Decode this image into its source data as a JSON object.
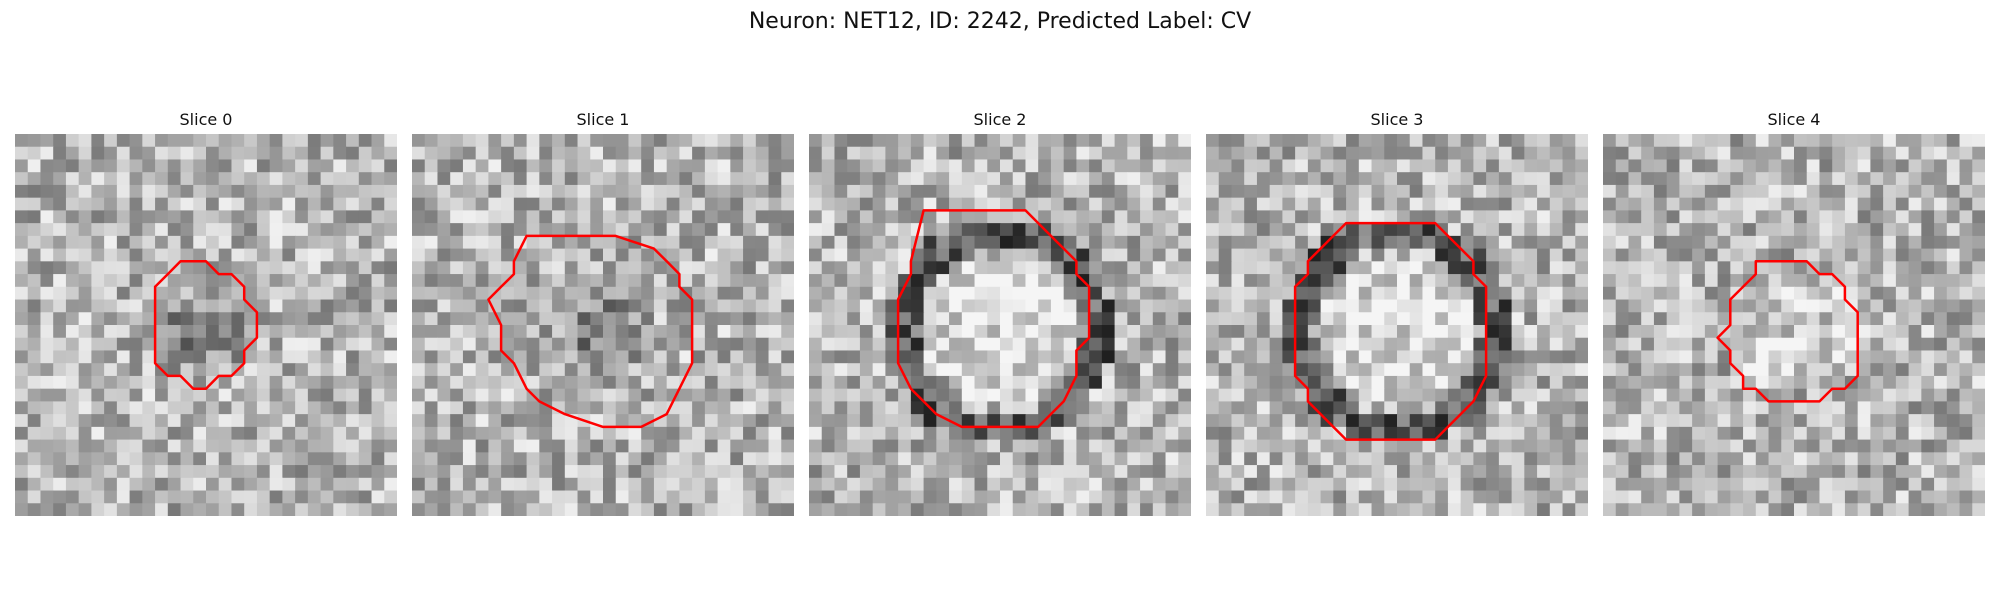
{
  "figure": {
    "title": "Neuron: NET12, ID: 2242, Predicted Label: CV"
  },
  "colors": {
    "contour": "#ff0000",
    "background": "#ffffff"
  },
  "grid_size": 30,
  "slices": [
    {
      "title": "Slice 0",
      "seed": 11,
      "dark_center": true,
      "ring": false,
      "contour": [
        [
          13,
          10
        ],
        [
          15,
          10
        ],
        [
          16,
          11
        ],
        [
          17,
          11
        ],
        [
          18,
          12
        ],
        [
          18,
          13
        ],
        [
          19,
          14
        ],
        [
          19,
          16
        ],
        [
          18,
          17
        ],
        [
          18,
          18
        ],
        [
          17,
          19
        ],
        [
          16,
          19
        ],
        [
          15,
          20
        ],
        [
          14,
          20
        ],
        [
          13,
          19
        ],
        [
          12,
          19
        ],
        [
          11,
          18
        ],
        [
          11,
          17
        ],
        [
          11,
          12
        ],
        [
          12,
          11
        ]
      ]
    },
    {
      "title": "Slice 1",
      "seed": 23,
      "dark_center": true,
      "ring": false,
      "contour": [
        [
          9,
          8
        ],
        [
          11,
          8
        ],
        [
          16,
          8
        ],
        [
          19,
          9
        ],
        [
          20,
          10
        ],
        [
          21,
          11
        ],
        [
          21,
          12
        ],
        [
          22,
          13
        ],
        [
          22,
          18
        ],
        [
          21,
          20
        ],
        [
          20,
          22
        ],
        [
          18,
          23
        ],
        [
          15,
          23
        ],
        [
          12,
          22
        ],
        [
          10,
          21
        ],
        [
          9,
          20
        ],
        [
          8,
          18
        ],
        [
          7,
          17
        ],
        [
          7,
          15
        ],
        [
          6,
          13
        ],
        [
          7,
          12
        ],
        [
          8,
          11
        ],
        [
          8,
          10
        ]
      ]
    },
    {
      "title": "Slice 2",
      "seed": 37,
      "dark_center": false,
      "ring": true,
      "contour": [
        [
          9,
          6
        ],
        [
          12,
          6
        ],
        [
          17,
          6
        ],
        [
          18,
          7
        ],
        [
          19,
          8
        ],
        [
          20,
          9
        ],
        [
          21,
          10
        ],
        [
          21,
          11
        ],
        [
          22,
          12
        ],
        [
          22,
          14
        ],
        [
          22,
          16
        ],
        [
          21,
          17
        ],
        [
          21,
          19
        ],
        [
          20,
          21
        ],
        [
          19,
          22
        ],
        [
          18,
          23
        ],
        [
          12,
          23
        ],
        [
          10,
          22
        ],
        [
          9,
          21
        ],
        [
          8,
          20
        ],
        [
          7,
          18
        ],
        [
          7,
          13
        ],
        [
          8,
          11
        ],
        [
          8,
          10
        ]
      ]
    },
    {
      "title": "Slice 3",
      "seed": 53,
      "dark_center": false,
      "ring": true,
      "contour": [
        [
          11,
          7
        ],
        [
          14,
          7
        ],
        [
          18,
          7
        ],
        [
          19,
          8
        ],
        [
          20,
          9
        ],
        [
          21,
          10
        ],
        [
          21,
          11
        ],
        [
          22,
          12
        ],
        [
          22,
          19
        ],
        [
          21,
          21
        ],
        [
          20,
          22
        ],
        [
          19,
          23
        ],
        [
          18,
          24
        ],
        [
          11,
          24
        ],
        [
          10,
          23
        ],
        [
          9,
          22
        ],
        [
          8,
          21
        ],
        [
          8,
          20
        ],
        [
          7,
          19
        ],
        [
          7,
          12
        ],
        [
          8,
          11
        ],
        [
          8,
          10
        ],
        [
          9,
          9
        ],
        [
          10,
          8
        ]
      ]
    },
    {
      "title": "Slice 4",
      "seed": 71,
      "dark_center": false,
      "ring": false,
      "contour": [
        [
          12,
          10
        ],
        [
          13,
          10
        ],
        [
          16,
          10
        ],
        [
          17,
          11
        ],
        [
          18,
          11
        ],
        [
          19,
          12
        ],
        [
          19,
          13
        ],
        [
          20,
          14
        ],
        [
          20,
          17
        ],
        [
          20,
          19
        ],
        [
          19,
          20
        ],
        [
          18,
          20
        ],
        [
          17,
          21
        ],
        [
          13,
          21
        ],
        [
          12,
          20
        ],
        [
          11,
          20
        ],
        [
          11,
          19
        ],
        [
          10,
          18
        ],
        [
          10,
          17
        ],
        [
          9,
          16
        ],
        [
          10,
          15
        ],
        [
          10,
          13
        ],
        [
          11,
          12
        ],
        [
          12,
          11
        ]
      ]
    }
  ]
}
